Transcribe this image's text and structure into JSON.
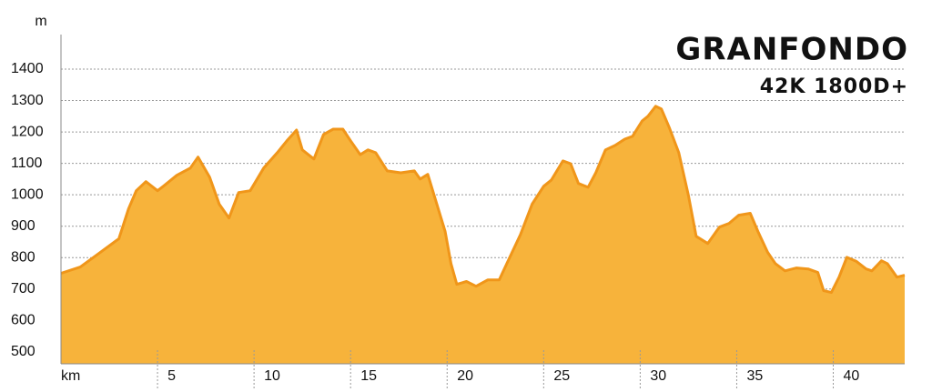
{
  "chart_data": {
    "type": "area",
    "title": "GRANFONDO",
    "subtitle": "42K 1800D+",
    "y_label": "m",
    "x": [
      0,
      1.0,
      2.0,
      3.0,
      3.5,
      3.9,
      4.4,
      5.0,
      5.3,
      6.0,
      6.7,
      7.1,
      7.7,
      8.2,
      8.7,
      9.2,
      9.8,
      10.5,
      11.2,
      11.7,
      12.2,
      12.5,
      13.1,
      13.6,
      14.1,
      14.6,
      15.0,
      15.5,
      15.9,
      16.3,
      16.9,
      17.6,
      18.3,
      18.6,
      19.0,
      19.4,
      19.9,
      20.2,
      20.5,
      21.0,
      21.5,
      22.1,
      22.7,
      23.2,
      23.8,
      24.4,
      25.0,
      25.4,
      26.0,
      26.4,
      26.8,
      27.3,
      27.7,
      28.2,
      28.7,
      29.2,
      29.6,
      30.1,
      30.4,
      30.8,
      31.1,
      31.5,
      32.0,
      32.5,
      32.9,
      33.5,
      34.1,
      34.6,
      35.1,
      35.7,
      36.1,
      36.6,
      37.0,
      37.5,
      38.1,
      38.7,
      39.2,
      39.5,
      39.9,
      40.3,
      40.7,
      41.2,
      41.7,
      42.0,
      42.5,
      42.8,
      43.3,
      43.7
    ],
    "values": [
      750,
      770,
      815,
      860,
      955,
      1013,
      1042,
      1013,
      1027,
      1062,
      1085,
      1120,
      1056,
      970,
      926,
      1007,
      1013,
      1085,
      1134,
      1172,
      1206,
      1143,
      1114,
      1192,
      1209,
      1209,
      1172,
      1128,
      1143,
      1134,
      1076,
      1070,
      1076,
      1050,
      1065,
      984,
      883,
      781,
      715,
      724,
      709,
      729,
      729,
      795,
      874,
      970,
      1027,
      1047,
      1108,
      1099,
      1036,
      1024,
      1070,
      1143,
      1157,
      1177,
      1186,
      1235,
      1250,
      1282,
      1273,
      1215,
      1134,
      998,
      868,
      845,
      897,
      909,
      935,
      941,
      883,
      817,
      781,
      758,
      767,
      764,
      753,
      695,
      689,
      738,
      801,
      788,
      764,
      758,
      790,
      781,
      738,
      744
    ],
    "color": "#f7b33b",
    "line_color": "#f0961a",
    "xlim": [
      0,
      43.7
    ],
    "ylim": [
      462,
      1510
    ],
    "xticks": [
      {
        "value": 0,
        "label": "km"
      },
      5,
      10,
      15,
      20,
      25,
      30,
      35,
      40
    ],
    "yticks": [
      500,
      600,
      700,
      800,
      900,
      1000,
      1100,
      1200,
      1300,
      1400
    ],
    "grid": true
  }
}
